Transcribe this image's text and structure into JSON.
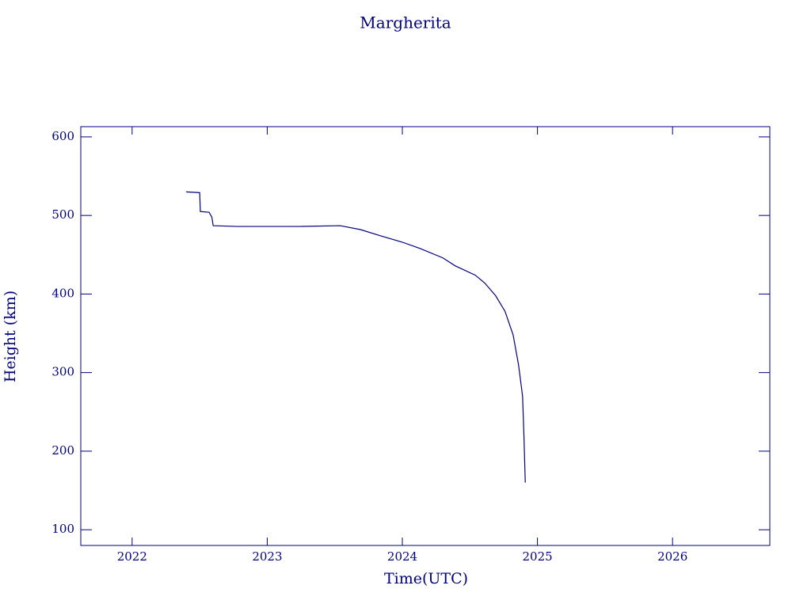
{
  "chart_data": {
    "type": "line",
    "title": "Margherita",
    "x_label": "Time(UTC)",
    "y_label": "Height (km)",
    "color": "#000080",
    "xlim": [
      2021.62,
      2026.72
    ],
    "xticks": [
      2022,
      2023,
      2024,
      2025,
      2026
    ],
    "ylim": [
      80,
      613
    ],
    "yticks": [
      100,
      200,
      300,
      400,
      500,
      600
    ],
    "x": [
      2022.4,
      2022.5,
      2022.505,
      2022.57,
      2022.59,
      2022.6,
      2022.78,
      2023.01,
      2023.25,
      2023.54,
      2023.69,
      2023.84,
      2024.0,
      2024.13,
      2024.3,
      2024.39,
      2024.54,
      2024.61,
      2024.69,
      2024.76,
      2024.82,
      2024.86,
      2024.89,
      2024.9,
      2024.91
    ],
    "values": [
      530,
      529,
      505,
      504,
      498,
      487,
      486,
      486,
      486,
      487,
      482,
      474,
      466,
      458,
      446,
      436,
      424,
      414,
      398,
      378,
      348,
      310,
      270,
      220,
      160
    ]
  }
}
